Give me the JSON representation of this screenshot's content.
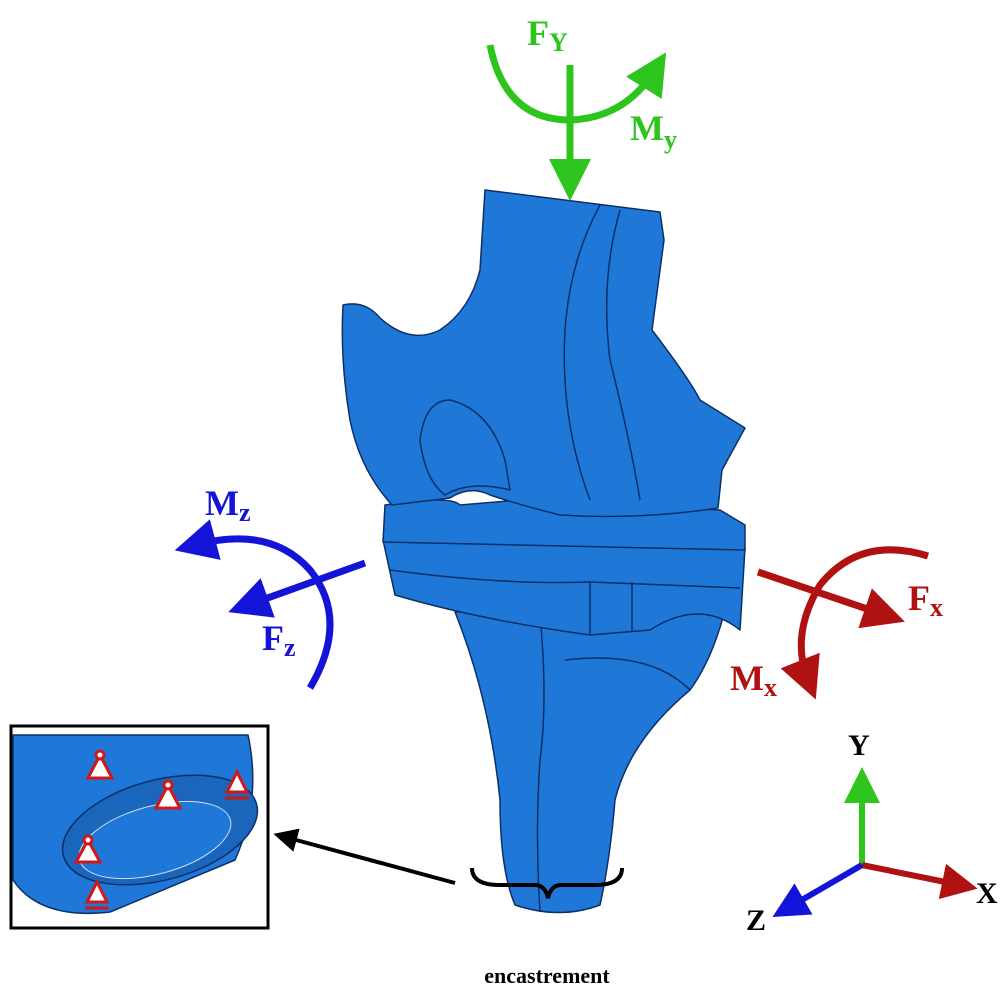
{
  "loads": {
    "fy": {
      "symbol": "F",
      "sub": "Y"
    },
    "my": {
      "symbol": "M",
      "sub": "y"
    },
    "mz": {
      "symbol": "M",
      "sub": "z"
    },
    "fz": {
      "symbol": "F",
      "sub": "z"
    },
    "fx": {
      "symbol": "F",
      "sub": "x"
    },
    "mx": {
      "symbol": "M",
      "sub": "x"
    }
  },
  "axes": {
    "y": "Y",
    "x": "X",
    "z": "Z"
  },
  "support": {
    "label": "encastrement"
  }
}
